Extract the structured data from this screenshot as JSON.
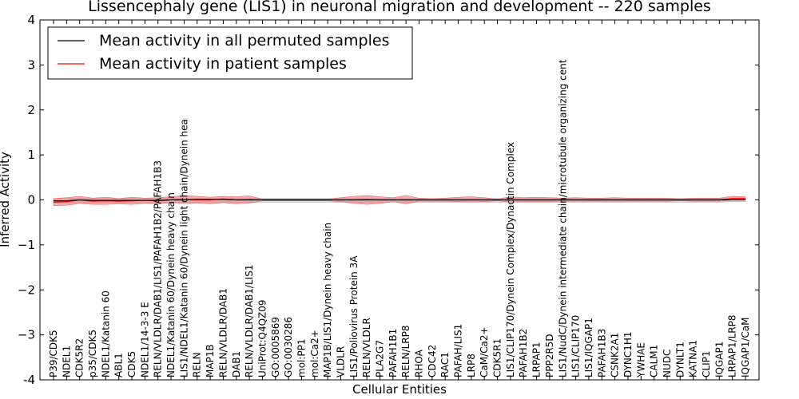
{
  "chart_data": {
    "type": "line",
    "title": "Lissencephaly gene (LIS1) in neuronal migration and development -- 220 samples",
    "xlabel": "Cellular Entities",
    "ylabel": "Inferred Activity",
    "ylim": [
      -4,
      4
    ],
    "yticks": [
      "-4",
      "−3",
      "−2",
      "−1",
      "0",
      "1",
      "2",
      "3",
      "4"
    ],
    "ytick_values": [
      -4,
      -3,
      -2,
      -1,
      0,
      1,
      2,
      3,
      4
    ],
    "legend": {
      "placement": "top-left",
      "entries": [
        {
          "label": "Mean activity in all permuted samples",
          "color": "#000000"
        },
        {
          "label": "Mean activity in patient samples",
          "color": "#ff0000"
        }
      ]
    },
    "categories": [
      "P39/CDK5",
      "NDEL1",
      "CDK5R2",
      "p35/CDK5",
      "NDEL1/Katanin 60",
      "ABL1",
      "CDK5",
      "NDEL1/14-3-3 E",
      "RELN/VLDLR/DAB1/LIS1/PAFAH1B2/PAFAH1B3",
      "NDEL1/Katanin 60/Dynein heavy chain",
      "LIS1/NDEL1/Katanin 60/Dynein light chain/Dynein hea",
      "RELN",
      "MAP1B",
      "RELN/VLDLR/DAB1",
      "DAB1",
      "RELN/VLDLR/DAB1/LIS1",
      "UniProt:Q4QZ09",
      "GO:0005869",
      "GO:0030286",
      "mol:PP1",
      "mol:Ca2+",
      "MAP1B/LIS1/Dynein heavy chain",
      "VLDLR",
      "LIS1/Poliovirus Protein 3A",
      "RELN/VLDLR",
      "PLA2G7",
      "PAFAH1B1",
      "RELN/LRP8",
      "RHOA",
      "CDC42",
      "RAC1",
      "PAFAH/LIS1",
      "LRP8",
      "CaM/Ca2+",
      "CDK5R1",
      "LIS1/CLIP170/Dynein Complex/Dynactin Complex",
      "PAFAH1B2",
      "LRPAP1",
      "PPP2R5D",
      "LIS1/NudC/Dynein intermediate chain/microtubule organizing cent",
      "LIS1/CLIP170",
      "LIS1/IQGAP1",
      "PAFAH1B3",
      "CSNK2A1",
      "DYNC1H1",
      "YWHAE",
      "CALM1",
      "NUDC",
      "DYNLT1",
      "KATNA1",
      "CLIP1",
      "IQGAP1",
      "LRPAP1/LRP8",
      "IQGAP1/CaM"
    ],
    "series": [
      {
        "name": "Mean activity in all permuted samples",
        "color": "#000000",
        "values": [
          -0.02,
          -0.02,
          0.0,
          -0.01,
          -0.01,
          -0.01,
          -0.01,
          -0.01,
          -0.01,
          0.0,
          0.0,
          0.01,
          0.01,
          0.01,
          0.0,
          0.0,
          0.0,
          0.0,
          0.0,
          0.0,
          0.0,
          0.0,
          0.0,
          0.0,
          0.0,
          0.0,
          0.0,
          0.0,
          0.0,
          0.0,
          0.0,
          0.0,
          0.0,
          0.0,
          0.0,
          0.0,
          0.0,
          0.0,
          0.0,
          0.0,
          0.0,
          0.0,
          0.0,
          0.0,
          0.0,
          0.0,
          0.0,
          0.0,
          0.0,
          0.0,
          0.0,
          0.0,
          0.01,
          0.01
        ],
        "band_upper": [
          0.03,
          0.03,
          0.04,
          0.03,
          0.03,
          0.03,
          0.03,
          0.03,
          0.03,
          0.03,
          0.03,
          0.03,
          0.03,
          0.03,
          0.03,
          0.03,
          0.03,
          0.03,
          0.03,
          0.03,
          0.03,
          0.03,
          0.03,
          0.03,
          0.03,
          0.03,
          0.03,
          0.03,
          0.03,
          0.03,
          0.03,
          0.03,
          0.03,
          0.03,
          0.03,
          0.03,
          0.03,
          0.03,
          0.03,
          0.03,
          0.03,
          0.03,
          0.03,
          0.03,
          0.03,
          0.03,
          0.03,
          0.03,
          0.03,
          0.03,
          0.03,
          0.03,
          0.03,
          0.03
        ],
        "band_lower": [
          -0.07,
          -0.07,
          -0.05,
          -0.06,
          -0.06,
          -0.06,
          -0.06,
          -0.06,
          -0.06,
          -0.05,
          -0.05,
          -0.05,
          -0.05,
          -0.05,
          -0.05,
          -0.05,
          -0.05,
          -0.05,
          -0.05,
          -0.05,
          -0.05,
          -0.05,
          -0.05,
          -0.05,
          -0.05,
          -0.05,
          -0.05,
          -0.05,
          -0.05,
          -0.05,
          -0.05,
          -0.05,
          -0.05,
          -0.05,
          -0.05,
          -0.05,
          -0.05,
          -0.05,
          -0.05,
          -0.05,
          -0.05,
          -0.05,
          -0.05,
          -0.05,
          -0.05,
          -0.05,
          -0.05,
          -0.05,
          -0.05,
          -0.05,
          -0.05,
          -0.05,
          -0.04,
          -0.04
        ]
      },
      {
        "name": "Mean activity in patient samples",
        "color": "#ff0000",
        "values": [
          -0.05,
          -0.04,
          0.0,
          -0.03,
          -0.02,
          -0.03,
          -0.02,
          -0.01,
          -0.02,
          0.0,
          0.01,
          0.0,
          0.0,
          0.02,
          0.0,
          0.01,
          0.0,
          0.0,
          0.0,
          0.0,
          0.0,
          0.0,
          0.0,
          0.0,
          0.01,
          0.0,
          0.0,
          0.0,
          0.0,
          0.0,
          0.0,
          0.0,
          0.0,
          0.0,
          0.0,
          0.0,
          0.0,
          0.0,
          0.0,
          0.0,
          0.0,
          0.0,
          0.0,
          0.0,
          0.0,
          0.0,
          0.0,
          0.0,
          0.0,
          0.0,
          0.0,
          0.0,
          0.03,
          0.03
        ],
        "band_upper": [
          0.03,
          0.05,
          0.08,
          0.04,
          0.06,
          0.03,
          0.06,
          0.04,
          0.05,
          0.07,
          0.1,
          0.08,
          0.06,
          0.08,
          0.07,
          0.09,
          0.02,
          0.02,
          0.02,
          0.02,
          0.02,
          0.02,
          0.05,
          0.08,
          0.1,
          0.07,
          0.05,
          0.1,
          0.04,
          0.03,
          0.04,
          0.06,
          0.07,
          0.05,
          0.02,
          0.07,
          0.05,
          0.06,
          0.05,
          0.04,
          0.05,
          0.04,
          0.04,
          0.05,
          0.04,
          0.04,
          0.04,
          0.04,
          0.03,
          0.04,
          0.04,
          0.04,
          0.08,
          0.07
        ],
        "band_lower": [
          -0.13,
          -0.12,
          -0.08,
          -0.1,
          -0.1,
          -0.09,
          -0.1,
          -0.08,
          -0.09,
          -0.06,
          -0.08,
          -0.07,
          -0.09,
          -0.06,
          -0.09,
          -0.07,
          -0.02,
          -0.02,
          -0.02,
          -0.02,
          -0.02,
          -0.02,
          -0.04,
          -0.08,
          -0.1,
          -0.08,
          -0.04,
          -0.09,
          -0.03,
          -0.03,
          -0.03,
          -0.04,
          -0.05,
          -0.04,
          -0.02,
          -0.05,
          -0.04,
          -0.04,
          -0.04,
          -0.03,
          -0.03,
          -0.03,
          -0.03,
          -0.03,
          -0.03,
          -0.03,
          -0.03,
          -0.03,
          -0.02,
          -0.03,
          -0.03,
          -0.03,
          -0.01,
          -0.01
        ]
      }
    ]
  }
}
